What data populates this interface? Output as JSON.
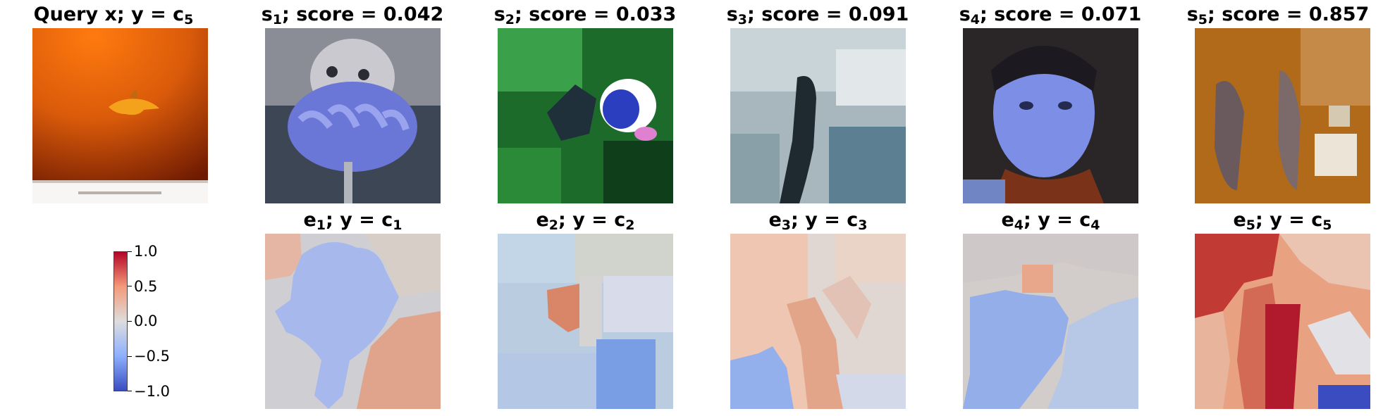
{
  "top_row": [
    {
      "id": "query",
      "pre": "Query x; y = c",
      "sub": "5",
      "post": ""
    },
    {
      "id": "s1",
      "pre": "s",
      "sub": "1",
      "post": "; score = 0.042"
    },
    {
      "id": "s2",
      "pre": "s",
      "sub": "2",
      "post": "; score = 0.033"
    },
    {
      "id": "s3",
      "pre": "s",
      "sub": "3",
      "post": "; score = 0.091"
    },
    {
      "id": "s4",
      "pre": "s",
      "sub": "4",
      "post": "; score = 0.071"
    },
    {
      "id": "s5",
      "pre": "s",
      "sub": "5",
      "post": "; score = 0.857"
    }
  ],
  "bottom_row": [
    {
      "id": "e1",
      "pre": "e",
      "sub": "1",
      "mid": "; y = c",
      "sub2": "1"
    },
    {
      "id": "e2",
      "pre": "e",
      "sub": "2",
      "mid": "; y = c",
      "sub2": "2"
    },
    {
      "id": "e3",
      "pre": "e",
      "sub": "3",
      "mid": "; y = c",
      "sub2": "3"
    },
    {
      "id": "e4",
      "pre": "e",
      "sub": "4",
      "mid": "; y = c",
      "sub2": "4"
    },
    {
      "id": "e5",
      "pre": "e",
      "sub": "5",
      "mid": "; y = c",
      "sub2": "5"
    }
  ],
  "colorbar": {
    "ticks": [
      "1.0",
      "0.5",
      "0.0",
      "−0.5",
      "−1.0"
    ],
    "colormap": [
      "#b40426",
      "#f49a7b",
      "#dddddd",
      "#8db0fe",
      "#3b4cc0"
    ]
  }
}
